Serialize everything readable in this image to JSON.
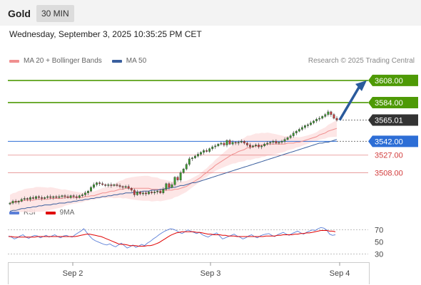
{
  "header": {
    "symbol": "Gold",
    "timeframe": "30 MIN"
  },
  "datetime": "Wednesday, September 3, 2025 10:35:25 PM CET",
  "legend": {
    "ma20_label": "MA 20 + Bollinger Bands",
    "ma50_label": "MA 50"
  },
  "credit": "Research © 2025 Trading Central",
  "rsi_legend": {
    "rsi_label": "RSI",
    "ma_label": "9MA"
  },
  "colors": {
    "ma20": "#f08f8f",
    "ma50": "#3a5f9e",
    "resistance": "#4e9a06",
    "current": "#333333",
    "pivot": "#2d6ed6",
    "support": "#d23c3c",
    "rsi": "#5b7fd8",
    "rsi_ma": "#e00000",
    "band_fill": "#fde3e3",
    "arrow": "#2a5a9c"
  },
  "chart_data": [
    {
      "type": "candlestick",
      "title": "Gold",
      "interval": "30 MIN",
      "x_ticks": [
        "Sep 2",
        "Sep 3",
        "Sep 4"
      ],
      "ylim": [
        3475,
        3618
      ],
      "levels": [
        {
          "value": 3608.0,
          "label": "3608.00",
          "kind": "resistance"
        },
        {
          "value": 3584.0,
          "label": "3584.00",
          "kind": "resistance"
        },
        {
          "value": 3565.01,
          "label": "3565.01",
          "kind": "current"
        },
        {
          "value": 3542.0,
          "label": "3542.00",
          "kind": "pivot"
        },
        {
          "value": 3527.0,
          "label": "3527.00",
          "kind": "support"
        },
        {
          "value": 3508.0,
          "label": "3508.00",
          "kind": "support"
        }
      ],
      "close": [
        3475,
        3477,
        3476,
        3477,
        3479,
        3480,
        3479,
        3481,
        3480,
        3482,
        3481,
        3480,
        3481,
        3482,
        3481,
        3482,
        3481,
        3482,
        3483,
        3482,
        3481,
        3483,
        3482,
        3481,
        3483,
        3484,
        3486,
        3488,
        3492,
        3495,
        3497,
        3496,
        3495,
        3494,
        3495,
        3494,
        3495,
        3494,
        3493,
        3492,
        3493,
        3491,
        3489,
        3484,
        3487,
        3485,
        3486,
        3485,
        3487,
        3486,
        3487,
        3488,
        3486,
        3490,
        3496,
        3492,
        3495,
        3503,
        3500,
        3508,
        3512,
        3517,
        3523,
        3524,
        3526,
        3528,
        3530,
        3532,
        3531,
        3534,
        3536,
        3537,
        3539,
        3540,
        3538,
        3543,
        3539,
        3541,
        3540,
        3541,
        3542,
        3540,
        3538,
        3536,
        3537,
        3538,
        3536,
        3537,
        3539,
        3540,
        3541,
        3542,
        3540,
        3541,
        3542,
        3544,
        3546,
        3548,
        3551,
        3553,
        3555,
        3557,
        3559,
        3560,
        3562,
        3564,
        3566,
        3567,
        3569,
        3571,
        3574,
        3571,
        3567,
        3565
      ],
      "ma20": [
        3475,
        3476,
        3476,
        3477,
        3477,
        3478,
        3478,
        3478,
        3478,
        3479,
        3479,
        3479,
        3479,
        3479,
        3480,
        3480,
        3480,
        3480,
        3480,
        3481,
        3481,
        3481,
        3481,
        3481,
        3481,
        3481,
        3482,
        3482,
        3483,
        3483,
        3484,
        3485,
        3486,
        3486,
        3487,
        3488,
        3488,
        3489,
        3490,
        3490,
        3491,
        3491,
        3491,
        3491,
        3491,
        3491,
        3491,
        3491,
        3491,
        3490,
        3490,
        3490,
        3489,
        3489,
        3489,
        3489,
        3489,
        3490,
        3490,
        3491,
        3492,
        3493,
        3495,
        3497,
        3499,
        3501,
        3503,
        3506,
        3508,
        3511,
        3513,
        3516,
        3518,
        3520,
        3522,
        3524,
        3526,
        3528,
        3529,
        3531,
        3532,
        3533,
        3535,
        3535,
        3536,
        3537,
        3537,
        3538,
        3538,
        3539,
        3539,
        3539,
        3539,
        3539,
        3539,
        3539,
        3540,
        3540,
        3540,
        3541,
        3541,
        3542,
        3543,
        3544,
        3545,
        3546,
        3547,
        3549,
        3550,
        3551,
        3553,
        3554,
        3555,
        3556
      ],
      "ma50": [
        3466,
        3467,
        3467,
        3468,
        3469,
        3469,
        3470,
        3470,
        3471,
        3471,
        3472,
        3472,
        3473,
        3473,
        3473,
        3474,
        3474,
        3475,
        3475,
        3475,
        3476,
        3476,
        3477,
        3477,
        3478,
        3478,
        3479,
        3479,
        3480,
        3480,
        3481,
        3481,
        3482,
        3482,
        3483,
        3483,
        3484,
        3484,
        3485,
        3485,
        3486,
        3486,
        3486,
        3487,
        3487,
        3487,
        3488,
        3488,
        3488,
        3489,
        3489,
        3489,
        3490,
        3490,
        3491,
        3491,
        3492,
        3492,
        3493,
        3494,
        3494,
        3495,
        3496,
        3497,
        3497,
        3498,
        3499,
        3500,
        3501,
        3502,
        3503,
        3504,
        3505,
        3506,
        3507,
        3508,
        3509,
        3510,
        3511,
        3512,
        3513,
        3514,
        3515,
        3516,
        3517,
        3518,
        3519,
        3520,
        3521,
        3522,
        3523,
        3524,
        3525,
        3526,
        3527,
        3528,
        3529,
        3530,
        3531,
        3532,
        3533,
        3534,
        3535,
        3536,
        3537,
        3538,
        3539,
        3540,
        3540,
        3541,
        3541,
        3542,
        3543,
        3544
      ],
      "projection": {
        "from": 3565,
        "to": 3608
      }
    },
    {
      "type": "line",
      "title": "RSI",
      "ylim": [
        20,
        85
      ],
      "y_ticks": [
        70,
        50,
        30
      ],
      "series": [
        {
          "name": "RSI",
          "values": [
            60,
            58,
            55,
            57,
            60,
            62,
            58,
            56,
            59,
            61,
            60,
            57,
            59,
            61,
            58,
            60,
            62,
            59,
            57,
            60,
            61,
            59,
            58,
            62,
            65,
            68,
            72,
            66,
            60,
            55,
            52,
            50,
            48,
            46,
            45,
            47,
            44,
            42,
            45,
            48,
            44,
            40,
            42,
            45,
            41,
            43,
            46,
            44,
            48,
            51,
            55,
            58,
            62,
            65,
            68,
            70,
            72,
            71,
            69,
            66,
            64,
            67,
            70,
            68,
            66,
            64,
            66,
            62,
            60,
            58,
            61,
            63,
            65,
            60,
            55,
            57,
            59,
            61,
            63,
            60,
            58,
            55,
            57,
            60,
            62,
            59,
            57,
            60,
            62,
            63,
            64,
            61,
            59,
            62,
            64,
            66,
            63,
            61,
            64,
            66,
            68,
            65,
            63,
            66,
            68,
            70,
            69,
            72,
            74,
            73,
            70,
            63,
            61,
            62
          ]
        },
        {
          "name": "9MA",
          "values": [
            59,
            59,
            58,
            58,
            58,
            58,
            58,
            58,
            58,
            58,
            59,
            59,
            59,
            59,
            59,
            59,
            59,
            59,
            59,
            59,
            59,
            59,
            59,
            59,
            60,
            61,
            62,
            63,
            63,
            62,
            61,
            60,
            59,
            57,
            55,
            53,
            51,
            49,
            47,
            46,
            46,
            45,
            44,
            44,
            44,
            43,
            43,
            43,
            44,
            44,
            45,
            47,
            49,
            52,
            55,
            58,
            61,
            63,
            65,
            66,
            67,
            67,
            67,
            67,
            67,
            66,
            66,
            65,
            64,
            63,
            63,
            62,
            62,
            62,
            61,
            61,
            60,
            60,
            60,
            59,
            59,
            59,
            59,
            59,
            59,
            59,
            59,
            59,
            59,
            60,
            60,
            60,
            60,
            61,
            61,
            62,
            62,
            62,
            62,
            63,
            63,
            64,
            64,
            65,
            65,
            66,
            67,
            68,
            69,
            69,
            69,
            68,
            68,
            67
          ]
        }
      ]
    }
  ]
}
